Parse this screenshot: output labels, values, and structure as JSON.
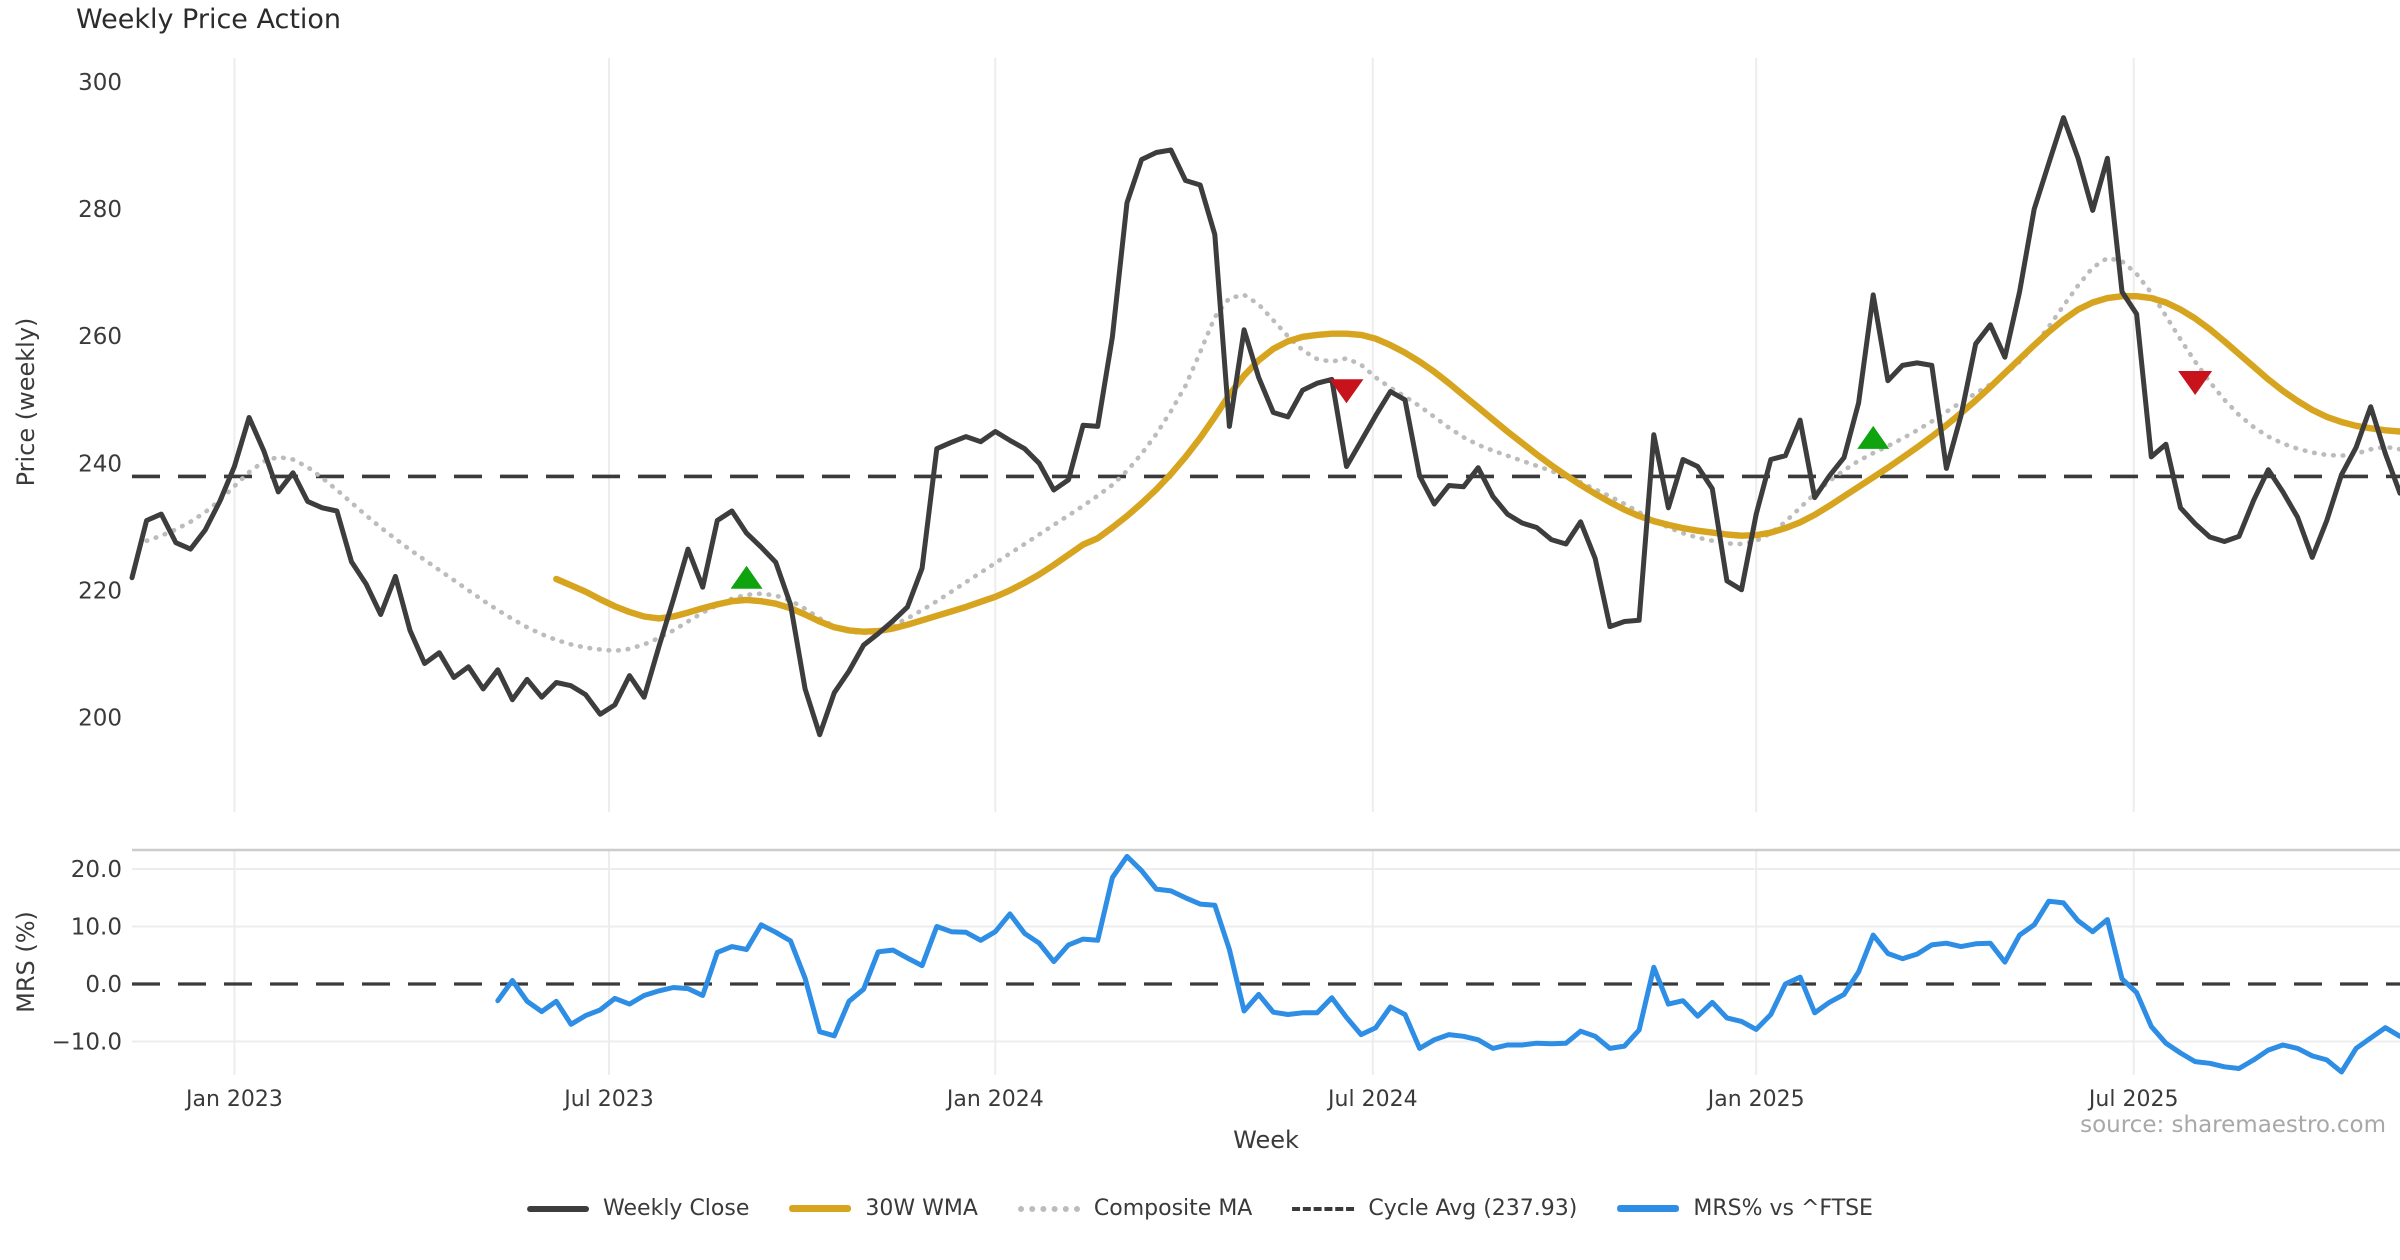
{
  "title": "Weekly Price Action",
  "source_note": "source: sharemaestro.com",
  "colors": {
    "weekly_close": "#3d3d3d",
    "wma30": "#d7a41f",
    "composite": "#bcbcbc",
    "cycle_avg": "#3a3a3a",
    "mrs": "#2e8de4",
    "buy_marker": "#0fa30f",
    "sell_marker": "#c8121c",
    "grid": "#ededed",
    "panel_border": "#cccccc",
    "text": "#3a3a3a",
    "muted": "#a8a8a8"
  },
  "legend": {
    "items": [
      {
        "label": "Weekly Close",
        "style": "solid",
        "color": "#3d3d3d"
      },
      {
        "label": "30W WMA",
        "style": "solid",
        "color": "#d7a41f"
      },
      {
        "label": "Composite MA",
        "style": "dotted",
        "color": "#bcbcbc"
      },
      {
        "label": "Cycle Avg (237.93)",
        "style": "dashed",
        "color": "#3a3a3a"
      },
      {
        "label": "MRS% vs ^FTSE",
        "style": "solid",
        "color": "#2e8de4"
      }
    ]
  },
  "chart_data": [
    {
      "type": "line",
      "panel": "price",
      "title": "Weekly Price Action",
      "xlabel": "Week",
      "ylabel": "Price (weekly)",
      "grid": "vertical",
      "legend_position": "bottom-center",
      "xlim_weeks": [
        0,
        155
      ],
      "ylim": [
        185.5,
        304.3
      ],
      "y_ticks": [
        200,
        220,
        240,
        260,
        280,
        300
      ],
      "x_ticks": [
        {
          "label": "Jan 2023",
          "week": 7
        },
        {
          "label": "Jul 2023",
          "week": 32.6
        },
        {
          "label": "Jan 2024",
          "week": 59
        },
        {
          "label": "Jul 2024",
          "week": 84.8
        },
        {
          "label": "Jan 2025",
          "week": 111
        },
        {
          "label": "Jul 2025",
          "week": 136.8
        }
      ],
      "cycle_avg": 237.93,
      "series": [
        {
          "name": "Weekly Close",
          "start_week": 0,
          "values": [
            222,
            231,
            232,
            227.5,
            226.5,
            229.5,
            234,
            239.5,
            247.2,
            242,
            235.5,
            238.5,
            234,
            233,
            232.5,
            224.5,
            221,
            216.2,
            222.2,
            213.7,
            208.5,
            210.2,
            206.3,
            208,
            204.5,
            207.5,
            202.8,
            206,
            203.2,
            205.5,
            205,
            203.6,
            200.5,
            202,
            206.6,
            203.2,
            211.1,
            218.6,
            226.5,
            220.5,
            231,
            232.5,
            229,
            226.8,
            224.4,
            217.8,
            204.5,
            197.3,
            203.9,
            207.3,
            211.4,
            213.2,
            215.2,
            217.4,
            223.5,
            242.3,
            243.3,
            244.2,
            243.4,
            245,
            243.6,
            242.3,
            240,
            235.8,
            237.4,
            246,
            245.8,
            259.9,
            281,
            287.8,
            288.9,
            289.3,
            284.5,
            283.8,
            276,
            245.8,
            261,
            253.5,
            248,
            247.3,
            251.5,
            252.6,
            253.2,
            239.5,
            243.5,
            247.5,
            251.3,
            250,
            238,
            233.6,
            236.5,
            236.3,
            239.3,
            234.8,
            232,
            230.6,
            229.9,
            228,
            227.3,
            230.8,
            225,
            214.3,
            215.1,
            215.3,
            244.5,
            233,
            240.6,
            239.5,
            236,
            221.5,
            220.1,
            232,
            240.6,
            241.2,
            246.8,
            234.6,
            238,
            240.9,
            249.5,
            266.5,
            253,
            255.4,
            255.8,
            255.4,
            239.2,
            247.5,
            258.8,
            261.8,
            256.7,
            267,
            280,
            287.2,
            294.4,
            288,
            279.8,
            288,
            267,
            263.5,
            241,
            243,
            233,
            230.5,
            228.4,
            227.7,
            228.5,
            234.2,
            239,
            235.5,
            231.5,
            225.2,
            231,
            238.2,
            242.5,
            248.9,
            241.5,
            235.3
          ]
        },
        {
          "name": "30W WMA",
          "start_week": 29,
          "values": [
            221.8,
            220.8,
            219.8,
            218.6,
            217.5,
            216.6,
            215.9,
            215.6,
            215.9,
            216.5,
            217.2,
            217.8,
            218.3,
            218.5,
            218.3,
            217.9,
            217.2,
            216.2,
            215.1,
            214.2,
            213.7,
            213.5,
            213.6,
            214,
            214.6,
            215.3,
            216,
            216.7,
            217.4,
            218.2,
            219,
            220,
            221.2,
            222.5,
            224,
            225.6,
            227.2,
            228.2,
            229.9,
            231.7,
            233.7,
            235.9,
            238.3,
            241,
            244,
            247.3,
            250.8,
            253.8,
            256.2,
            258,
            259.2,
            259.9,
            260.2,
            260.4,
            260.4,
            260.2,
            259.6,
            258.6,
            257.4,
            256,
            254.4,
            252.6,
            250.7,
            248.8,
            246.9,
            245,
            243.2,
            241.4,
            239.7,
            238.1,
            236.6,
            235.2,
            233.9,
            232.7,
            231.7,
            230.9,
            230.3,
            229.8,
            229.4,
            229.1,
            228.8,
            228.6,
            228.7,
            229.1,
            229.8,
            230.7,
            231.9,
            233.3,
            234.8,
            236.3,
            237.8,
            239.3,
            240.9,
            242.5,
            244.2,
            246,
            247.9,
            249.9,
            252,
            254.2,
            256.4,
            258.6,
            260.7,
            262.6,
            264.2,
            265.3,
            266,
            266.3,
            266.3,
            266,
            265.3,
            264.2,
            262.8,
            261.1,
            259.2,
            257.2,
            255.2,
            253.2,
            251.4,
            249.8,
            248.4,
            247.3,
            246.5,
            245.9,
            245.5,
            245.2,
            245
          ]
        },
        {
          "name": "Composite MA",
          "start_week": 1,
          "values": [
            227.8,
            228.6,
            229.6,
            230.8,
            232.3,
            234.2,
            236.4,
            238.6,
            240.3,
            241,
            240.6,
            239.4,
            237.7,
            235.8,
            233.8,
            231.8,
            229.9,
            228.1,
            226.4,
            224.8,
            223.2,
            221.6,
            220,
            218.4,
            216.9,
            215.5,
            214.2,
            213.1,
            212.2,
            211.5,
            211,
            210.7,
            210.5,
            210.8,
            211.5,
            212.5,
            213.7,
            215.1,
            216.5,
            217.7,
            218.7,
            219.3,
            219.5,
            219.2,
            218.4,
            217.1,
            215.6,
            214.3,
            213.5,
            213.3,
            213.7,
            214.5,
            215.6,
            216.9,
            218.3,
            219.8,
            221.3,
            222.8,
            224.3,
            225.8,
            227.3,
            228.8,
            230.3,
            231.8,
            233.3,
            234.9,
            236.6,
            238.8,
            241.5,
            244.6,
            248.2,
            252.2,
            257.5,
            263,
            266,
            266.5,
            265,
            262.5,
            260,
            257.8,
            256.4,
            256,
            256.5,
            255.5,
            253.5,
            251.9,
            250.5,
            249,
            247.3,
            245.6,
            244.1,
            242.9,
            242,
            241.2,
            240.4,
            239.6,
            238.8,
            237.9,
            237,
            235.9,
            234.8,
            233.6,
            232.3,
            231,
            229.9,
            229,
            228.3,
            227.8,
            227.4,
            227.3,
            227.8,
            229,
            230.8,
            233,
            235.2,
            237.2,
            238.9,
            240.4,
            241.6,
            242.7,
            243.9,
            245.2,
            246.6,
            248.1,
            249.6,
            251,
            252.4,
            254,
            256,
            258.5,
            261.5,
            264.8,
            268,
            270.8,
            272.3,
            271.8,
            269.8,
            266.8,
            263.2,
            259.5,
            256,
            252.8,
            250,
            247.6,
            245.7,
            244.2,
            243.1,
            242.3,
            241.7,
            241.3,
            241.2,
            241.5,
            242.2,
            242.6,
            242.2
          ]
        }
      ],
      "markers": [
        {
          "week": 42,
          "value": 222,
          "type": "buy"
        },
        {
          "week": 83,
          "value": 251.5,
          "type": "sell"
        },
        {
          "week": 119,
          "value": 244,
          "type": "buy"
        },
        {
          "week": 141,
          "value": 252.8,
          "type": "sell"
        }
      ]
    },
    {
      "type": "line",
      "panel": "mrs",
      "ylabel": "MRS (%)",
      "grid": "both",
      "ylim": [
        -15.8,
        23.3
      ],
      "y_ticks": [
        -10,
        0,
        10,
        20
      ],
      "zero_line": 0,
      "series": [
        {
          "name": "MRS% vs ^FTSE",
          "start_week": 25,
          "values": [
            -2.9,
            0.6,
            -3,
            -4.8,
            -3,
            -7,
            -5.5,
            -4.5,
            -2.5,
            -3.5,
            -2,
            -1.2,
            -0.6,
            -0.8,
            -2,
            5.5,
            6.5,
            6,
            10.3,
            9,
            7.5,
            1,
            -8.3,
            -9,
            -3,
            -0.9,
            5.6,
            5.9,
            4.5,
            3.2,
            10,
            9.1,
            9,
            7.6,
            9.1,
            12.2,
            8.8,
            7.1,
            3.9,
            6.8,
            7.8,
            7.6,
            18.5,
            22.2,
            19.7,
            16.5,
            16.2,
            15,
            13.9,
            13.7,
            6,
            -4.7,
            -1.8,
            -4.9,
            -5.3,
            -5,
            -5,
            -2.4,
            -5.8,
            -8.8,
            -7.6,
            -4,
            -5.3,
            -11.2,
            -9.7,
            -8.8,
            -9.1,
            -9.7,
            -11.2,
            -10.6,
            -10.6,
            -10.3,
            -10.4,
            -10.3,
            -8.2,
            -9.1,
            -11.2,
            -10.8,
            -8,
            2.9,
            -3.5,
            -2.9,
            -5.6,
            -3.2,
            -5.9,
            -6.5,
            -7.9,
            -5.3,
            0,
            1.2,
            -5,
            -3.2,
            -1.8,
            2.1,
            8.5,
            5.3,
            4.4,
            5.2,
            6.8,
            7.1,
            6.5,
            7,
            7.1,
            3.8,
            8.5,
            10.3,
            14.4,
            14.1,
            11,
            9.1,
            11.2,
            0.9,
            -1.5,
            -7.4,
            -10.3,
            -12,
            -13.5,
            -13.8,
            -14.4,
            -14.7,
            -13.2,
            -11.5,
            -10.6,
            -11.2,
            -12.5,
            -13.2,
            -15.3,
            -11.2,
            -9.4,
            -7.6,
            -9.1
          ]
        }
      ]
    }
  ]
}
